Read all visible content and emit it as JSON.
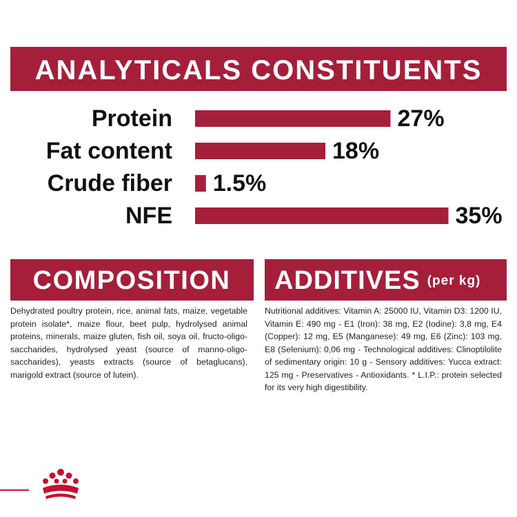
{
  "chart_data": {
    "type": "bar",
    "title": "ANALYTICALS CONSTITUENTS",
    "categories": [
      "Protein",
      "Fat content",
      "Crude fiber",
      "NFE"
    ],
    "values": [
      27,
      18,
      1.5,
      35
    ],
    "value_labels": [
      "27%",
      "18%",
      "1.5%",
      "35%"
    ],
    "color": "#a51f3b"
  },
  "composition": {
    "title": "COMPOSITION",
    "text": "Dehydrated poultry protein, rice, animal fats, maize, vegetable protein isolate*, maize flour, beet pulp, hydrolysed animal proteins, minerals, maize gluten, fish oil, soya oil, fructo-oligo-saccharides, hydrolysed yeast (source of manno-oligo-saccharides), yeasts extracts (source of betaglucans), marigold extract (source of lutein)."
  },
  "additives": {
    "title": "ADDITIVES",
    "subtitle": "(per kg)",
    "text": "Nutritional additives: Vitamin A: 25000 IU, Vitamin D3: 1200 IU, Vitamin E: 490 mg - E1 (Iron): 38 mg, E2 (Iodine): 3,8 mg, E4 (Copper): 12 mg, E5 (Manganese): 49 mg, E6 (Zinc): 103 mg, E8 (Selenium): 0,06 mg - Technological additives: Clinoptilolite of sedimentary origin: 10 g - Sensory additives: Yucca extract: 125 mg - Preservatives - Antioxidants. * L.I.P.: protein selected for its very high digestibility."
  }
}
